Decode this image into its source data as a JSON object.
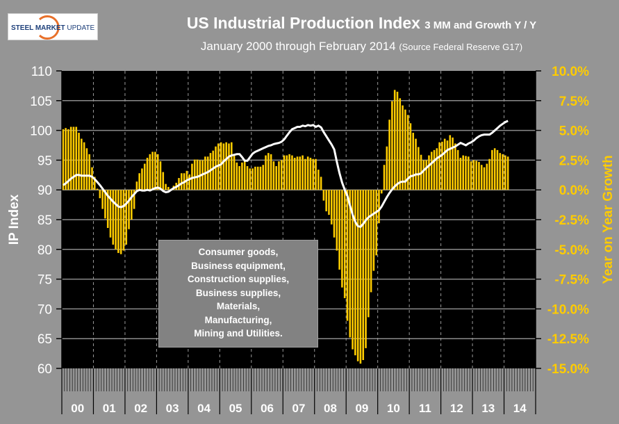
{
  "logo": {
    "text_a": "STEEL",
    "text_b": "MARKET",
    "text_c": "UPDATE"
  },
  "colors": {
    "background": "#959595",
    "plot": "#000000",
    "bars": "#ffcc00",
    "line": "#ffffff",
    "right_axis": "#ffcc00"
  },
  "chart_data": {
    "type": "bar+line",
    "title": "US Industrial Production Index",
    "title_suffix": "3 MM and Growth Y / Y",
    "subtitle": "January 2000 through February 2014",
    "source": "(Source Federal Reserve G17)",
    "ylabel": "IP Index",
    "y2label": "Year on Year Growth",
    "ylim": [
      60,
      110
    ],
    "y2lim": [
      -15,
      10
    ],
    "yticks": [
      "60",
      "65",
      "70",
      "75",
      "80",
      "85",
      "90",
      "95",
      "100",
      "105",
      "110"
    ],
    "y2ticks": [
      "-15.0%",
      "-12.5%",
      "-10.0%",
      "-7.5%",
      "-5.0%",
      "-2.5%",
      "0.0%",
      "2.5%",
      "5.0%",
      "7.5%",
      "10.0%"
    ],
    "xticks": [
      "00",
      "01",
      "02",
      "03",
      "04",
      "05",
      "06",
      "07",
      "08",
      "09",
      "10",
      "11",
      "12",
      "13",
      "14"
    ],
    "grid": true,
    "annotation": [
      "Consumer goods,",
      "Business equipment,",
      "Construction supplies,",
      "Business supplies,",
      "Materials,",
      "Manufacturing,",
      "Mining and Utilities."
    ],
    "series": [
      {
        "name": "Growth Y/Y (%)",
        "axis": "right",
        "kind": "bar",
        "values": [
          5.1,
          5.2,
          5.1,
          5.3,
          5.3,
          5.3,
          4.8,
          4.3,
          4.0,
          3.5,
          3.0,
          1.9,
          1.1,
          0.1,
          -0.7,
          -1.6,
          -2.4,
          -3.2,
          -4.0,
          -4.6,
          -5.0,
          -5.3,
          -5.4,
          -5.1,
          -4.6,
          -3.3,
          -2.5,
          -1.6,
          0.7,
          1.4,
          1.8,
          2.2,
          2.7,
          3.0,
          3.2,
          3.2,
          3.0,
          2.4,
          1.5,
          0.5,
          0.25,
          0.1,
          0.35,
          0.6,
          1.0,
          1.4,
          1.4,
          1.6,
          1.3,
          2.2,
          2.55,
          2.55,
          2.5,
          2.5,
          2.8,
          2.8,
          3.1,
          3.3,
          3.65,
          3.9,
          4.0,
          3.9,
          4.0,
          3.9,
          4.0,
          3.0,
          2.3,
          2.0,
          2.3,
          2.4,
          2.0,
          1.8,
          1.8,
          1.95,
          1.95,
          1.95,
          2.1,
          2.9,
          3.1,
          3.0,
          2.4,
          2.0,
          2.4,
          2.5,
          2.9,
          2.9,
          3.0,
          2.9,
          2.7,
          2.8,
          2.8,
          2.9,
          2.6,
          2.8,
          2.7,
          2.6,
          2.6,
          1.7,
          1.1,
          -0.9,
          -1.8,
          -2.1,
          -2.9,
          -4.0,
          -5.1,
          -6.7,
          -8.2,
          -9.1,
          -11.0,
          -12.4,
          -13.4,
          -13.9,
          -14.4,
          -14.6,
          -14.3,
          -13.3,
          -10.7,
          -8.6,
          -6.8,
          -5.5,
          -2.8,
          -0.3,
          2.1,
          3.65,
          5.9,
          7.45,
          8.4,
          8.25,
          7.7,
          7.1,
          6.75,
          6.3,
          5.6,
          4.8,
          4.3,
          3.6,
          2.95,
          2.5,
          2.5,
          2.9,
          3.2,
          3.35,
          3.5,
          4.0,
          4.05,
          4.3,
          4.15,
          4.6,
          4.4,
          3.9,
          3.35,
          2.7,
          2.9,
          2.85,
          2.8,
          2.4,
          2.5,
          2.45,
          2.35,
          2.1,
          1.9,
          2.2,
          2.6,
          3.35,
          3.5,
          3.35,
          3.1,
          3.0,
          2.9,
          2.8
        ]
      },
      {
        "name": "IP Index 3MM",
        "axis": "left",
        "kind": "line",
        "values": [
          90.8,
          91.1,
          91.5,
          91.9,
          92.2,
          92.5,
          92.5,
          92.4,
          92.4,
          92.4,
          92.4,
          92.2,
          91.8,
          91.3,
          90.8,
          90.2,
          89.6,
          89.0,
          88.5,
          88.0,
          87.6,
          87.2,
          87.1,
          87.3,
          87.7,
          88.2,
          88.8,
          89.3,
          89.8,
          90.0,
          89.9,
          89.9,
          90.0,
          89.9,
          90.1,
          90.3,
          90.4,
          90.2,
          89.8,
          89.6,
          89.7,
          90.0,
          90.3,
          90.5,
          90.8,
          91.1,
          91.3,
          91.6,
          91.8,
          92.0,
          92.1,
          92.2,
          92.4,
          92.6,
          92.8,
          93.0,
          93.3,
          93.6,
          93.9,
          94.1,
          94.3,
          94.8,
          95.2,
          95.6,
          95.8,
          95.9,
          96.0,
          96.0,
          95.5,
          94.9,
          94.9,
          95.5,
          96.1,
          96.4,
          96.6,
          96.8,
          97.0,
          97.2,
          97.4,
          97.5,
          97.7,
          97.8,
          97.9,
          98.1,
          98.5,
          99.1,
          99.7,
          100.2,
          100.4,
          100.6,
          100.6,
          100.8,
          100.7,
          100.9,
          100.8,
          100.9,
          100.6,
          100.8,
          100.5,
          99.7,
          99.0,
          98.3,
          97.6,
          96.8,
          94.7,
          92.8,
          91.2,
          90.0,
          89.0,
          87.3,
          85.8,
          84.6,
          83.9,
          83.8,
          84.3,
          84.9,
          85.4,
          85.7,
          86.0,
          86.3,
          86.6,
          87.2,
          88.0,
          88.8,
          89.5,
          90.1,
          90.6,
          91.0,
          91.3,
          91.4,
          91.4,
          91.9,
          92.3,
          92.4,
          92.6,
          92.6,
          92.8,
          93.3,
          93.7,
          94.1,
          94.5,
          94.9,
          95.3,
          95.6,
          95.9,
          96.3,
          96.7,
          96.9,
          97.1,
          97.3,
          97.6,
          97.9,
          97.7,
          97.5,
          97.8,
          98.0,
          98.3,
          98.7,
          99.0,
          99.2,
          99.3,
          99.3,
          99.3,
          99.6,
          100.0,
          100.4,
          100.8,
          101.1,
          101.4,
          101.6
        ]
      }
    ]
  }
}
